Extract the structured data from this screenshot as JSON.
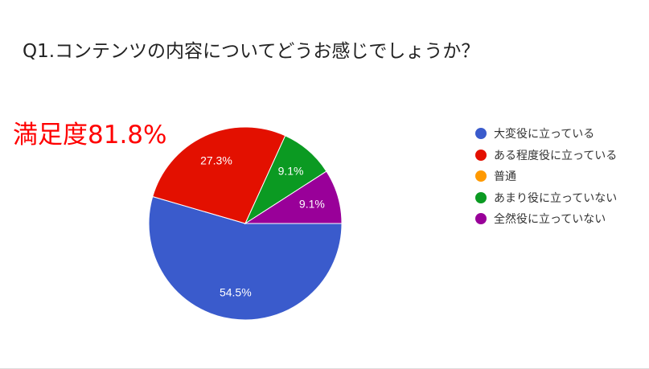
{
  "title": "Q1.コンテンツの内容についてどうお感じでしょうか？",
  "annotation": "満足度81.8%",
  "chart_data": {
    "type": "pie",
    "title": "Q1.コンテンツの内容についてどうお感じでしょうか？",
    "categories": [
      "大変役に立っている",
      "ある程度役に立っている",
      "普通",
      "あまり役に立っていない",
      "全然役に立っていない"
    ],
    "values": [
      54.5,
      27.3,
      0,
      9.1,
      9.1
    ],
    "data_labels": [
      "54.5%",
      "27.3%",
      "",
      "9.1%",
      "9.1%"
    ],
    "colors": [
      "#3a5bcc",
      "#e31000",
      "#ff9900",
      "#0b9a22",
      "#990099"
    ],
    "legend_position": "right"
  }
}
